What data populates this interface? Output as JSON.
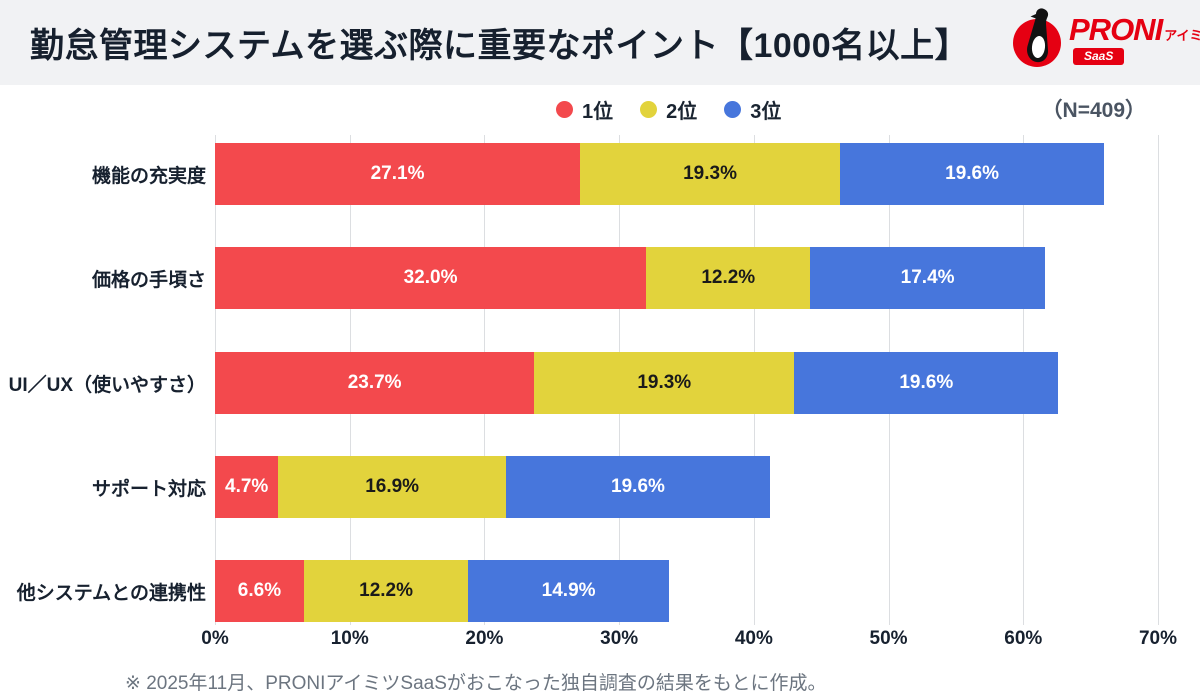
{
  "header": {
    "title": "勤怠管理システムを選ぶ際に重要なポイント【1000名以上】",
    "logo": {
      "brand": "PRONI",
      "sub": "アイミツ",
      "badge": "SaaS",
      "brand_color": "#E50012"
    }
  },
  "sample_note": "（N=409）",
  "legend": {
    "items": [
      {
        "label": "1位",
        "color": "#F3494D"
      },
      {
        "label": "2位",
        "color": "#E2D33C"
      },
      {
        "label": "3位",
        "color": "#4776DC"
      }
    ]
  },
  "chart_data": {
    "type": "bar",
    "orientation": "horizontal",
    "stacked": true,
    "title": "勤怠管理システムを選ぶ際に重要なポイント【1000名以上】",
    "categories": [
      "機能の充実度",
      "価格の手頃さ",
      "UI／UX（使いやすさ）",
      "サポート対応",
      "他システムとの連携性"
    ],
    "series": [
      {
        "name": "1位",
        "color": "#F3494D",
        "label_color": "#FFFFFF",
        "values": [
          27.1,
          32.0,
          23.7,
          4.7,
          6.6
        ]
      },
      {
        "name": "2位",
        "color": "#E2D33C",
        "label_color": "#1A1A1A",
        "values": [
          19.3,
          12.2,
          19.3,
          16.9,
          12.2
        ]
      },
      {
        "name": "3位",
        "color": "#4776DC",
        "label_color": "#FFFFFF",
        "values": [
          19.6,
          17.4,
          19.6,
          19.6,
          14.9
        ]
      }
    ],
    "xlabel": "",
    "ylabel": "",
    "xlim": [
      0,
      70
    ],
    "x_ticks": [
      "0%",
      "10%",
      "20%",
      "30%",
      "40%",
      "50%",
      "60%",
      "70%"
    ],
    "grid": true,
    "legend_position": "top-center",
    "value_suffix": "%"
  },
  "footer": {
    "note": "※ 2025年11月、PRONIアイミツSaaSがおこなった独自調査の結果をもとに作成。"
  }
}
